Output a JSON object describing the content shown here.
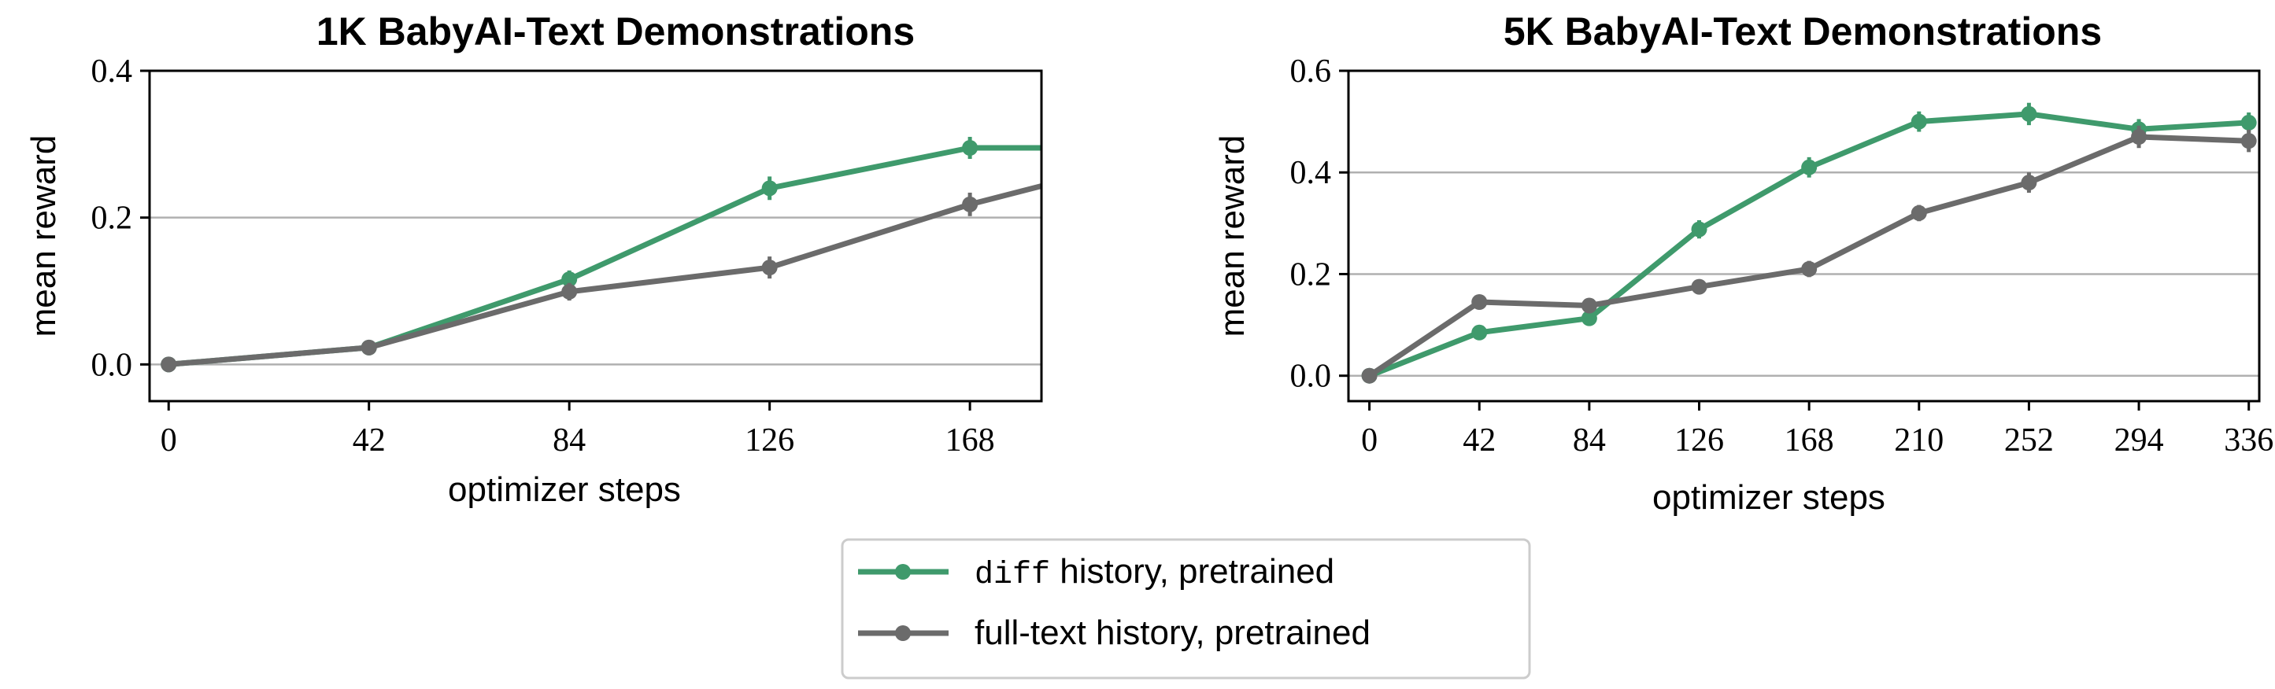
{
  "colors": {
    "diff": "#3f9a6c",
    "full": "#6b6b6b",
    "grid": "#b0b0b0"
  },
  "legend": {
    "items": [
      {
        "series_key": "diff",
        "code": "diff",
        "text": " history, pretrained"
      },
      {
        "series_key": "full",
        "code": "",
        "text": "full-text history, pretrained"
      }
    ]
  },
  "chart_data": [
    {
      "type": "line",
      "title": "1K BabyAI-Text Demonstrations",
      "xlabel": "optimizer steps",
      "ylabel": "mean reward",
      "xlim": [
        -4,
        183
      ],
      "ylim": [
        -0.05,
        0.4
      ],
      "xticks": [
        0,
        42,
        84,
        126,
        168
      ],
      "yticks": [
        0.0,
        0.2,
        0.4
      ],
      "ytick_labels": [
        "0.0",
        "0.2",
        "0.4"
      ],
      "grid_y": [
        0.0,
        0.2
      ],
      "series": [
        {
          "key": "diff",
          "x": [
            0,
            42,
            84,
            126,
            168,
            183
          ],
          "y": [
            0.0,
            0.023,
            0.116,
            0.24,
            0.295,
            0.295
          ],
          "err": [
            0.004,
            0.004,
            0.012,
            0.016,
            0.015,
            null
          ]
        },
        {
          "key": "full",
          "x": [
            0,
            42,
            84,
            126,
            168,
            183
          ],
          "y": [
            0.0,
            0.023,
            0.099,
            0.132,
            0.218,
            0.243
          ],
          "err": [
            0.004,
            0.004,
            0.012,
            0.015,
            0.016,
            null
          ]
        }
      ]
    },
    {
      "type": "line",
      "title": "5K BabyAI-Text Demonstrations",
      "xlabel": "optimizer steps",
      "ylabel": "mean reward",
      "xlim": [
        -8,
        340
      ],
      "ylim": [
        -0.05,
        0.6
      ],
      "xticks": [
        0,
        42,
        84,
        126,
        168,
        210,
        252,
        294,
        336
      ],
      "yticks": [
        0.0,
        0.2,
        0.4,
        0.6
      ],
      "ytick_labels": [
        "0.0",
        "0.2",
        "0.4",
        "0.6"
      ],
      "grid_y": [
        0.0,
        0.2,
        0.4
      ],
      "series": [
        {
          "key": "diff",
          "x": [
            0,
            42,
            84,
            126,
            168,
            210,
            252,
            294,
            336
          ],
          "y": [
            0.0,
            0.085,
            0.113,
            0.288,
            0.41,
            0.5,
            0.515,
            0.485,
            0.498
          ],
          "err": [
            0.005,
            0.008,
            0.012,
            0.018,
            0.02,
            0.02,
            0.022,
            0.02,
            0.02
          ]
        },
        {
          "key": "full",
          "x": [
            0,
            42,
            84,
            126,
            168,
            210,
            252,
            294,
            336
          ],
          "y": [
            0.0,
            0.145,
            0.138,
            0.175,
            0.21,
            0.32,
            0.38,
            0.47,
            0.462
          ],
          "err": [
            0.005,
            0.012,
            0.012,
            0.012,
            0.016,
            0.016,
            0.02,
            0.022,
            0.022
          ]
        }
      ]
    }
  ]
}
